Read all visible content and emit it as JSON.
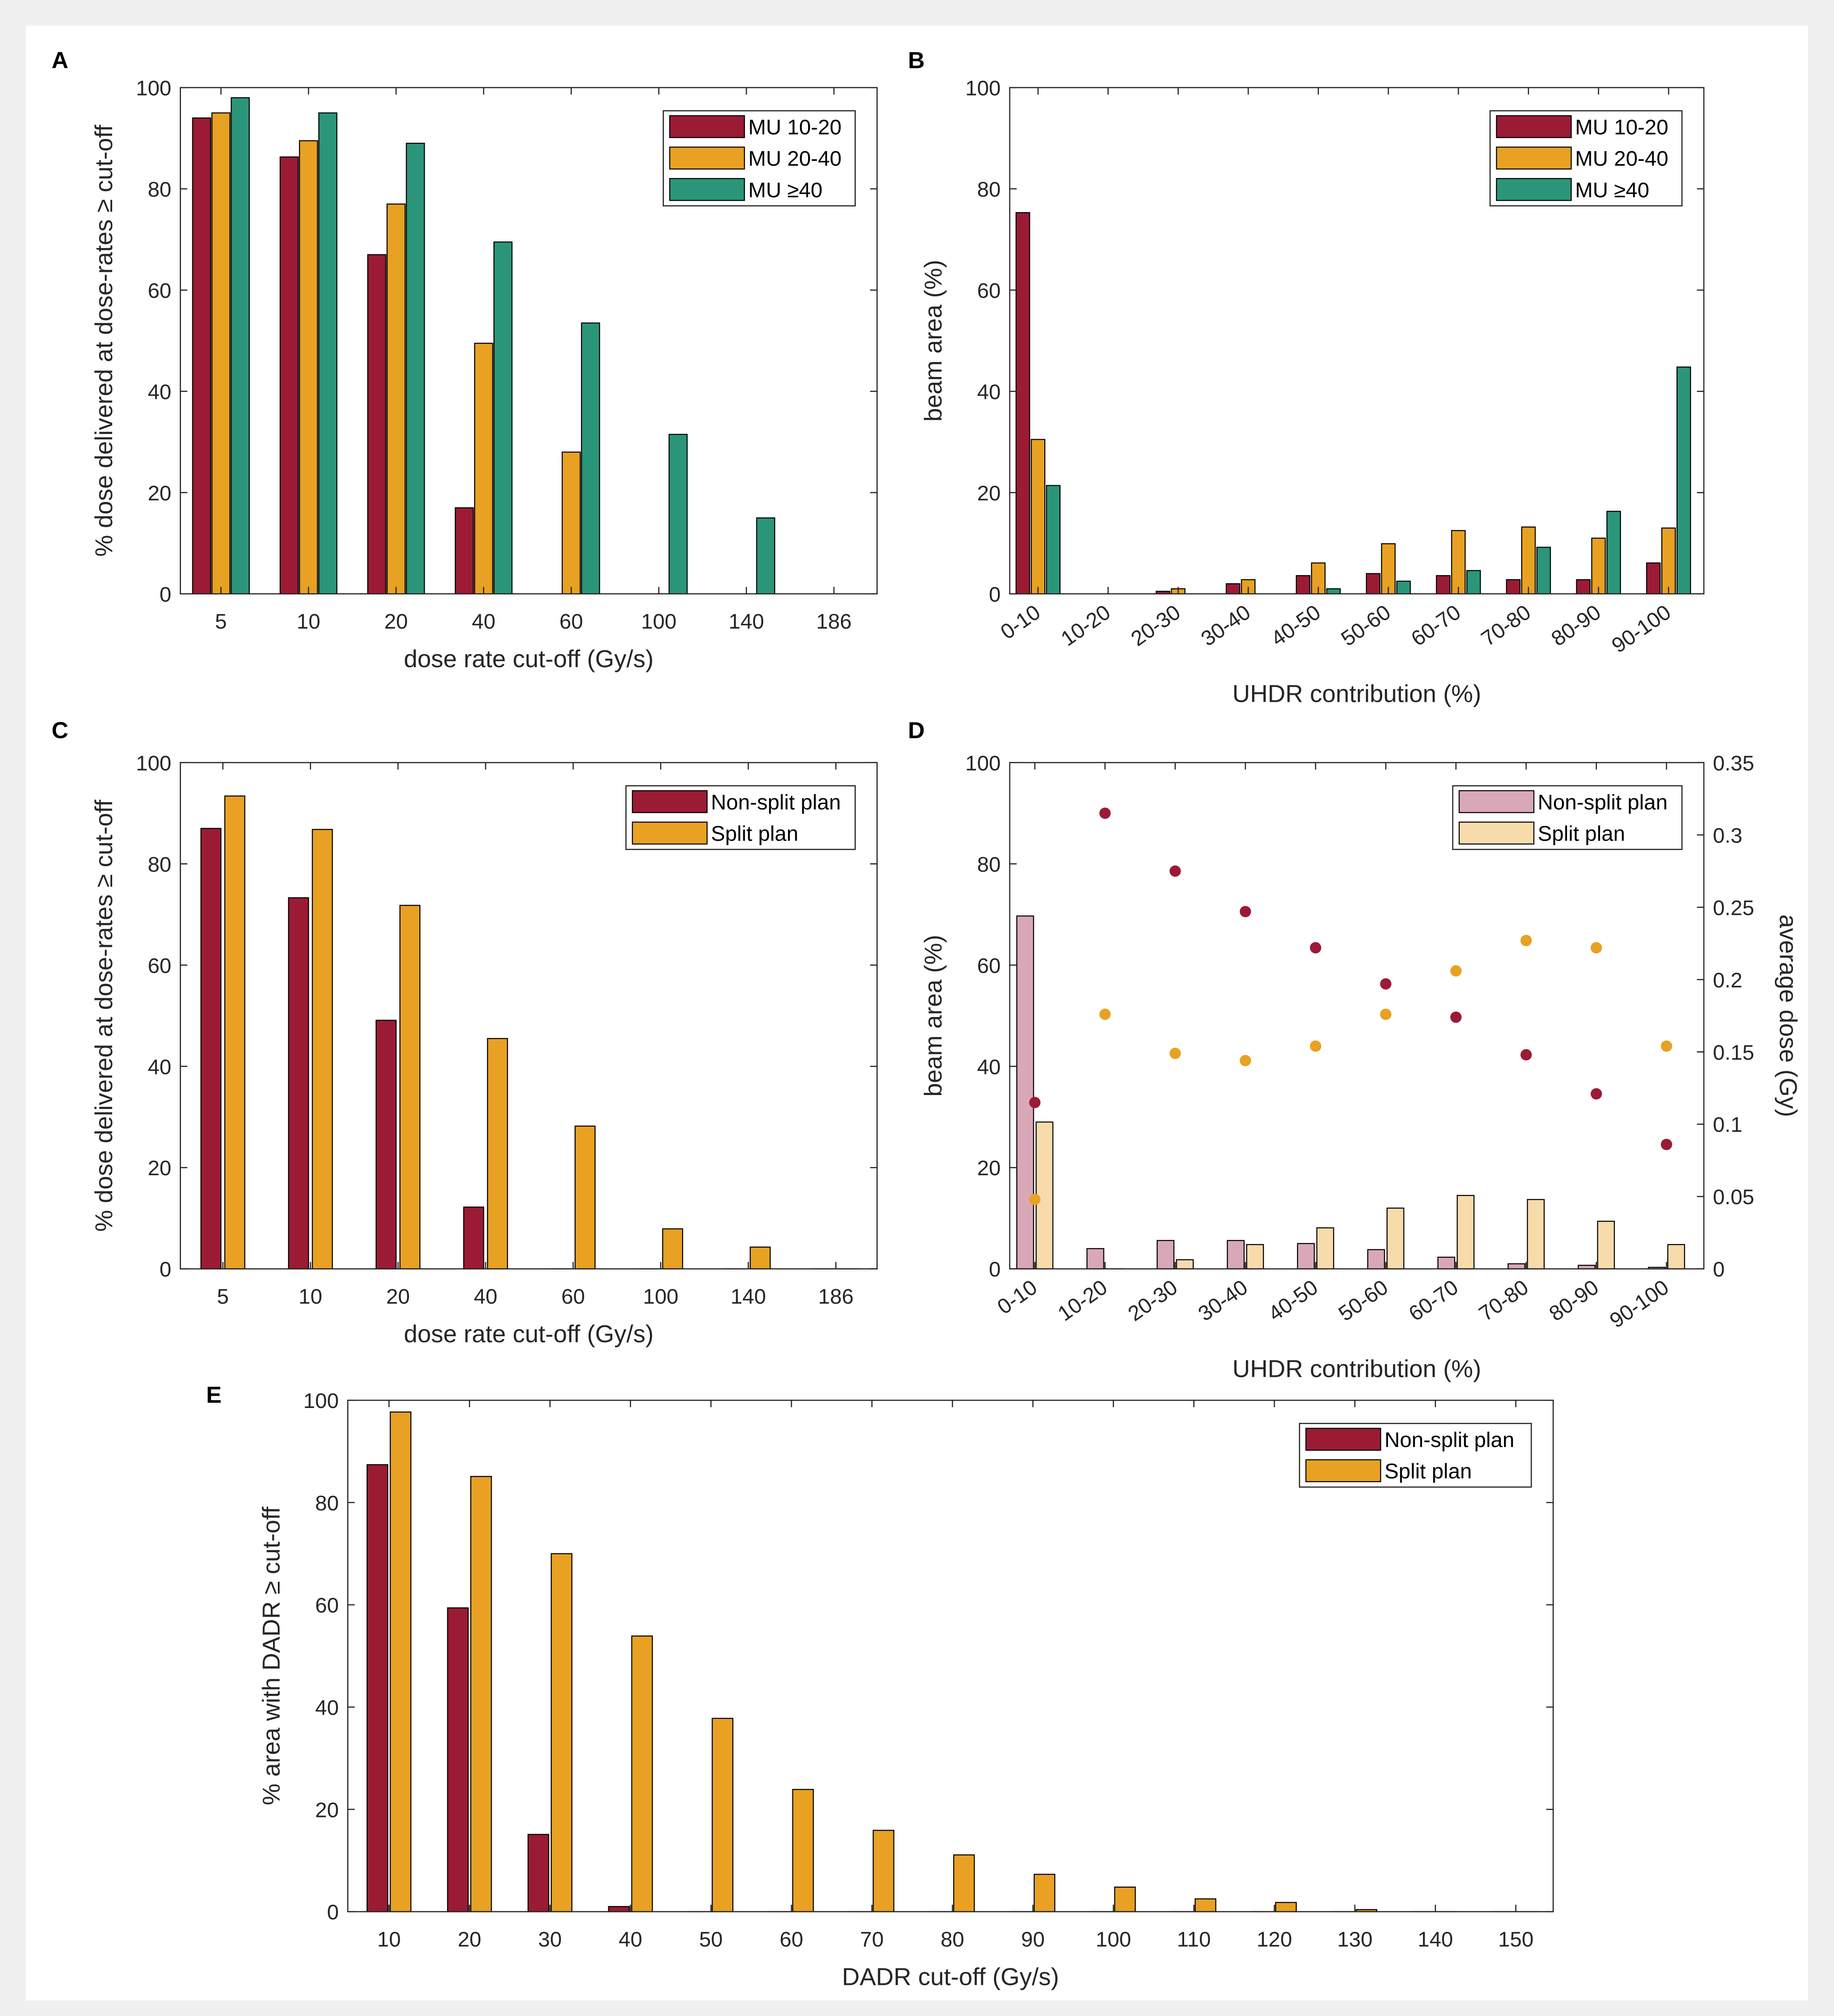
{
  "colors": {
    "window_background": "#f0f0f0",
    "canvas": "#ffffff",
    "axis": "#262626"
  },
  "chart_data": [
    {
      "title": "A",
      "type": "bar",
      "categories": [
        5,
        10,
        20,
        40,
        60,
        100,
        140,
        186
      ],
      "series": [
        {
          "name": "MU 10-20",
          "color": "#9b1b35",
          "values": [
            94,
            86.3,
            67,
            17,
            0,
            0,
            0,
            0
          ]
        },
        {
          "name": "MU 20-40",
          "color": "#e8a123",
          "values": [
            95,
            89.5,
            77,
            49.5,
            28,
            0,
            0,
            0
          ]
        },
        {
          "name": "MU ≥40",
          "color": "#2b957a",
          "values": [
            98,
            95,
            89,
            69.5,
            53.5,
            31.5,
            15,
            0
          ]
        }
      ],
      "xlabel": "dose rate cut-off (Gy/s)",
      "ylabel": "% dose delivered at dose-rates ≥ cut-off",
      "ylim": [
        0,
        100
      ],
      "yticks": [
        0,
        20,
        40,
        60,
        80,
        100
      ],
      "grid": false
    },
    {
      "title": "B",
      "type": "bar",
      "categories": [
        "0-10",
        "10-20",
        "20-30",
        "30-40",
        "40-50",
        "50-60",
        "60-70",
        "70-80",
        "80-90",
        "90-100"
      ],
      "series": [
        {
          "name": "MU 10-20",
          "color": "#9b1b35",
          "values": [
            75.3,
            0,
            0.5,
            2,
            3.6,
            4,
            3.6,
            2.8,
            2.8,
            6.1
          ]
        },
        {
          "name": "MU 20-40",
          "color": "#e8a123",
          "values": [
            30.5,
            0,
            1,
            2.8,
            6.1,
            9.9,
            12.5,
            13.2,
            11,
            13
          ]
        },
        {
          "name": "MU ≥40",
          "color": "#2b957a",
          "values": [
            21.4,
            0,
            0,
            0,
            1,
            2.5,
            4.6,
            9.2,
            16.3,
            44.8
          ]
        }
      ],
      "xlabel": "UHDR contribution (%)",
      "ylabel": "beam area (%)",
      "ylim": [
        0,
        100
      ],
      "yticks": [
        0,
        20,
        40,
        60,
        80,
        100
      ],
      "grid": false
    },
    {
      "title": "C",
      "type": "bar",
      "categories": [
        5,
        10,
        20,
        40,
        60,
        100,
        140,
        186
      ],
      "series": [
        {
          "name": "Non-split plan",
          "color": "#9b1b35",
          "values": [
            87,
            73.3,
            49.1,
            12.2,
            0,
            0,
            0,
            0
          ]
        },
        {
          "name": "Split plan",
          "color": "#e8a123",
          "values": [
            93.4,
            86.8,
            71.8,
            45.5,
            28.2,
            7.9,
            4.3,
            0
          ]
        }
      ],
      "xlabel": "dose rate cut-off (Gy/s)",
      "ylabel": "% dose delivered at dose-rates ≥ cut-off",
      "ylim": [
        0,
        100
      ],
      "yticks": [
        0,
        20,
        40,
        60,
        80,
        100
      ],
      "grid": false
    },
    {
      "title": "D",
      "type": "bar",
      "categories": [
        "0-10",
        "10-20",
        "20-30",
        "30-40",
        "40-50",
        "50-60",
        "60-70",
        "70-80",
        "80-90",
        "90-100"
      ],
      "series": [
        {
          "name": "Non-split plan",
          "color": "#d9a8b8",
          "values": [
            69.7,
            4,
            5.6,
            5.6,
            5,
            3.8,
            2.3,
            1,
            0.7,
            0.3
          ]
        },
        {
          "name": "Split plan",
          "color": "#f7dbab",
          "values": [
            29,
            0,
            1.8,
            4.8,
            8.1,
            12,
            14.5,
            13.7,
            9.4,
            4.8
          ]
        }
      ],
      "xlabel": "UHDR contribution (%)",
      "ylabel": "beam area (%)",
      "ylim": [
        0,
        100
      ],
      "yticks": [
        0,
        20,
        40,
        60,
        80,
        100
      ],
      "y2": {
        "label": "average dose (Gy)",
        "lim": [
          0,
          0.35
        ],
        "ticks": [
          0,
          0.05,
          0.1,
          0.15,
          0.2,
          0.25,
          0.3,
          0.35
        ],
        "scatter": [
          {
            "color": "#9b1b35",
            "values": [
              0.115,
              0.315,
              0.275,
              0.247,
              0.222,
              0.197,
              0.174,
              0.148,
              0.121,
              0.086
            ]
          },
          {
            "color": "#e8a123",
            "values": [
              0.048,
              0.176,
              0.149,
              0.144,
              0.154,
              0.176,
              0.206,
              0.227,
              0.222,
              0.154
            ]
          }
        ]
      },
      "grid": false
    },
    {
      "title": "E",
      "type": "bar",
      "categories": [
        10,
        20,
        30,
        40,
        50,
        60,
        70,
        80,
        90,
        100,
        110,
        120,
        130,
        140,
        150
      ],
      "series": [
        {
          "name": "Non-split plan",
          "color": "#9b1b35",
          "values": [
            87.4,
            59.4,
            15.1,
            1,
            0,
            0,
            0,
            0,
            0,
            0,
            0,
            0,
            0,
            0,
            0
          ]
        },
        {
          "name": "Split plan",
          "color": "#e8a123",
          "values": [
            97.7,
            85.1,
            70,
            53.9,
            37.8,
            23.9,
            15.9,
            11.1,
            7.3,
            4.8,
            2.5,
            1.8,
            0.4,
            0,
            0
          ]
        }
      ],
      "xlabel": "DADR cut-off (Gy/s)",
      "ylabel": "% area with DADR ≥ cut-off",
      "ylim": [
        0,
        100
      ],
      "yticks": [
        0,
        20,
        40,
        60,
        80,
        100
      ],
      "grid": false
    }
  ]
}
